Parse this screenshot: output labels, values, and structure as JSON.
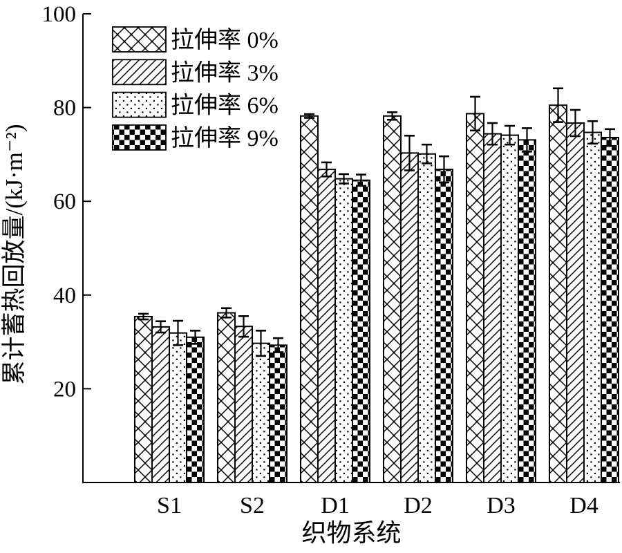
{
  "figure": {
    "title": "",
    "background_color": "#ffffff",
    "line_color": "#000000"
  },
  "chart_data": {
    "type": "bar",
    "title": "",
    "xlabel": "织物系统",
    "ylabel": "累计蓄热回放量/(kJ·m⁻²)",
    "categories": [
      "S1",
      "S2",
      "D1",
      "D2",
      "D3",
      "D4"
    ],
    "series": [
      {
        "name": "拉伸率 0%",
        "pattern": "crosshatch-pattern",
        "values": [
          35.4,
          36.2,
          78.2,
          78.2,
          78.7,
          80.5
        ],
        "errors": [
          0.6,
          1.0,
          0.4,
          0.8,
          3.6,
          3.6
        ]
      },
      {
        "name": "拉伸率 3%",
        "pattern": "diagonal-pattern",
        "values": [
          33.2,
          33.3,
          66.8,
          70.3,
          74.4,
          76.7
        ],
        "errors": [
          1.2,
          2.2,
          1.5,
          3.7,
          2.3,
          2.8
        ]
      },
      {
        "name": "拉伸率 6%",
        "pattern": "dots-pattern",
        "values": [
          31.9,
          29.7,
          64.8,
          70.1,
          74.1,
          74.7
        ],
        "errors": [
          2.6,
          2.7,
          1.0,
          2.0,
          2.0,
          2.4
        ]
      },
      {
        "name": "拉伸率 9%",
        "pattern": "checkerboard-pattern",
        "values": [
          31.0,
          29.3,
          64.5,
          66.8,
          73.1,
          73.6
        ],
        "errors": [
          1.4,
          1.5,
          1.2,
          2.8,
          2.5,
          1.8
        ]
      }
    ],
    "ylim": [
      0,
      100
    ],
    "yticks": [
      20,
      40,
      60,
      80,
      100
    ],
    "grid": false,
    "legend_position": "upper-left",
    "error_bars": true,
    "bar_fill": "#ffffff",
    "bar_stroke": "#000000"
  }
}
